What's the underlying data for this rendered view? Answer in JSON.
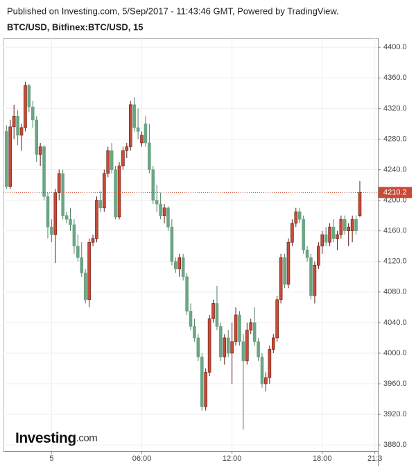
{
  "header": "Published on Investing.com, 5/Sep/2017 - 11:43:46 GMT, Powered by TradingView.",
  "logo": {
    "name": "Investing",
    "suffix": ".com"
  },
  "chart_data": {
    "type": "candlestick",
    "title": "BTC/USD, Bitfinex:BTC/USD, 15",
    "up_color": "#c94a36",
    "down_color": "#6aa584",
    "grid": true,
    "xlim": [
      -3.2,
      21.7
    ],
    "xticks": [
      {
        "value": 0,
        "label": "5"
      },
      {
        "value": 6,
        "label": "06:00"
      },
      {
        "value": 12,
        "label": "12:00"
      },
      {
        "value": 18,
        "label": "18:00"
      },
      {
        "value": 21.5,
        "label": "21:3"
      }
    ],
    "ylim": [
      3872,
      4412
    ],
    "yticks": [
      {
        "value": 3880,
        "label": "3880.0"
      },
      {
        "value": 3920,
        "label": "3920.0"
      },
      {
        "value": 3960,
        "label": "3960.0"
      },
      {
        "value": 4000,
        "label": "4000.0"
      },
      {
        "value": 4040,
        "label": "4040.0"
      },
      {
        "value": 4080,
        "label": "4080.0"
      },
      {
        "value": 4120,
        "label": "4120.0"
      },
      {
        "value": 4160,
        "label": "4160.0"
      },
      {
        "value": 4200,
        "label": "4200.0"
      },
      {
        "value": 4240,
        "label": "4240.0"
      },
      {
        "value": 4280,
        "label": "4280.0"
      },
      {
        "value": 4320,
        "label": "4320.0"
      },
      {
        "value": 4360,
        "label": "4360.0"
      },
      {
        "value": 4400,
        "label": "4400.0"
      }
    ],
    "x": [
      -3,
      -2.75,
      -2.5,
      -2.25,
      -2,
      -1.75,
      -1.5,
      -1.25,
      -1,
      -0.75,
      -0.5,
      -0.25,
      0,
      0.25,
      0.5,
      0.75,
      1,
      1.25,
      1.5,
      1.75,
      2,
      2.25,
      2.5,
      2.75,
      3,
      3.25,
      3.5,
      3.75,
      4,
      4.25,
      4.5,
      4.75,
      5,
      5.25,
      5.5,
      5.75,
      6,
      6.25,
      6.5,
      6.75,
      7,
      7.25,
      7.5,
      7.75,
      8,
      8.25,
      8.5,
      8.75,
      9,
      9.25,
      9.5,
      9.75,
      10,
      10.25,
      10.5,
      10.75,
      11,
      11.25,
      11.5,
      11.75,
      12,
      12.25,
      12.5,
      12.75,
      13,
      13.25,
      13.5,
      13.75,
      14,
      14.25,
      14.5,
      14.75,
      15,
      15.25,
      15.5,
      15.75,
      16,
      16.25,
      16.5,
      16.75,
      17,
      17.25,
      17.5,
      17.75,
      18,
      18.25,
      18.5,
      18.75,
      19,
      19.25,
      19.5,
      19.75,
      20,
      20.25,
      20.5
    ],
    "open": [
      4290,
      4218,
      4296,
      4310,
      4285,
      4295,
      4350,
      4322,
      4305,
      4260,
      4270,
      4205,
      4165,
      4155,
      4210,
      4235,
      4180,
      4175,
      4168,
      4140,
      4125,
      4105,
      4070,
      4145,
      4150,
      4200,
      4190,
      4235,
      4265,
      4240,
      4178,
      4245,
      4265,
      4270,
      4325,
      4295,
      4275,
      4300,
      4275,
      4240,
      4200,
      4195,
      4180,
      4190,
      4165,
      4120,
      4110,
      4125,
      4100,
      4055,
      4035,
      4020,
      3995,
      3930,
      3975,
      4045,
      4065,
      4035,
      3995,
      4020,
      4000,
      4015,
      4050,
      4015,
      3990,
      4030,
      4040,
      4015,
      3995,
      3960,
      3968,
      4005,
      4020,
      4070,
      4125,
      4090,
      4145,
      4170,
      4185,
      4175,
      4135,
      4125,
      4075,
      4115,
      4140,
      4155,
      4145,
      4165,
      4150,
      4155,
      4175,
      4160,
      4160,
      4175,
      4180
    ],
    "high": [
      4298,
      4305,
      4325,
      4318,
      4300,
      4355,
      4352,
      4330,
      4310,
      4275,
      4272,
      4210,
      4175,
      4215,
      4240,
      4240,
      4185,
      4190,
      4175,
      4155,
      4145,
      4110,
      4150,
      4155,
      4205,
      4212,
      4240,
      4270,
      4275,
      4245,
      4250,
      4270,
      4275,
      4330,
      4335,
      4320,
      4290,
      4310,
      4300,
      4245,
      4220,
      4210,
      4195,
      4192,
      4175,
      4125,
      4130,
      4130,
      4105,
      4065,
      4045,
      4025,
      4000,
      3980,
      4050,
      4070,
      4088,
      4040,
      4025,
      4030,
      4040,
      4060,
      4055,
      4025,
      4040,
      4045,
      4060,
      4020,
      4000,
      3975,
      4010,
      4025,
      4075,
      4130,
      4130,
      4150,
      4175,
      4190,
      4190,
      4180,
      4140,
      4130,
      4120,
      4145,
      4160,
      4165,
      4170,
      4175,
      4160,
      4180,
      4180,
      4170,
      4180,
      4180,
      4225
    ],
    "low": [
      4215,
      4215,
      4280,
      4272,
      4265,
      4290,
      4315,
      4295,
      4250,
      4245,
      4200,
      4150,
      4145,
      4118,
      4200,
      4175,
      4170,
      4160,
      4130,
      4120,
      4100,
      4065,
      4060,
      4140,
      4145,
      4185,
      4185,
      4230,
      4235,
      4175,
      4175,
      4240,
      4255,
      4265,
      4290,
      4280,
      4270,
      4270,
      4235,
      4195,
      4185,
      4175,
      4170,
      4160,
      4115,
      4105,
      4100,
      4095,
      4050,
      4030,
      4015,
      3990,
      3925,
      3925,
      3970,
      4040,
      4030,
      3990,
      3985,
      3995,
      3960,
      4010,
      4010,
      3900,
      3985,
      4025,
      4010,
      3990,
      3955,
      3950,
      3960,
      4000,
      4015,
      4065,
      4085,
      4085,
      4140,
      4165,
      4170,
      4130,
      4120,
      4070,
      4065,
      4110,
      4130,
      4140,
      4140,
      4145,
      4135,
      4150,
      4155,
      4140,
      4145,
      4155,
      4178
    ],
    "close": [
      4218,
      4296,
      4310,
      4285,
      4295,
      4350,
      4322,
      4305,
      4260,
      4270,
      4205,
      4165,
      4155,
      4210,
      4235,
      4180,
      4175,
      4168,
      4140,
      4125,
      4105,
      4070,
      4145,
      4150,
      4200,
      4190,
      4235,
      4265,
      4240,
      4178,
      4245,
      4265,
      4270,
      4325,
      4295,
      4290,
      4285,
      4275,
      4240,
      4200,
      4195,
      4180,
      4190,
      4165,
      4120,
      4110,
      4125,
      4100,
      4055,
      4035,
      4020,
      3995,
      3930,
      3975,
      4045,
      4065,
      4035,
      3995,
      4020,
      4000,
      4015,
      4050,
      4015,
      3990,
      4030,
      4040,
      4015,
      3995,
      3960,
      3968,
      4005,
      4020,
      4070,
      4125,
      4090,
      4145,
      4170,
      4185,
      4175,
      4135,
      4125,
      4075,
      4115,
      4140,
      4155,
      4145,
      4165,
      4150,
      4155,
      4175,
      4160,
      4165,
      4175,
      4160,
      4210.2
    ]
  }
}
